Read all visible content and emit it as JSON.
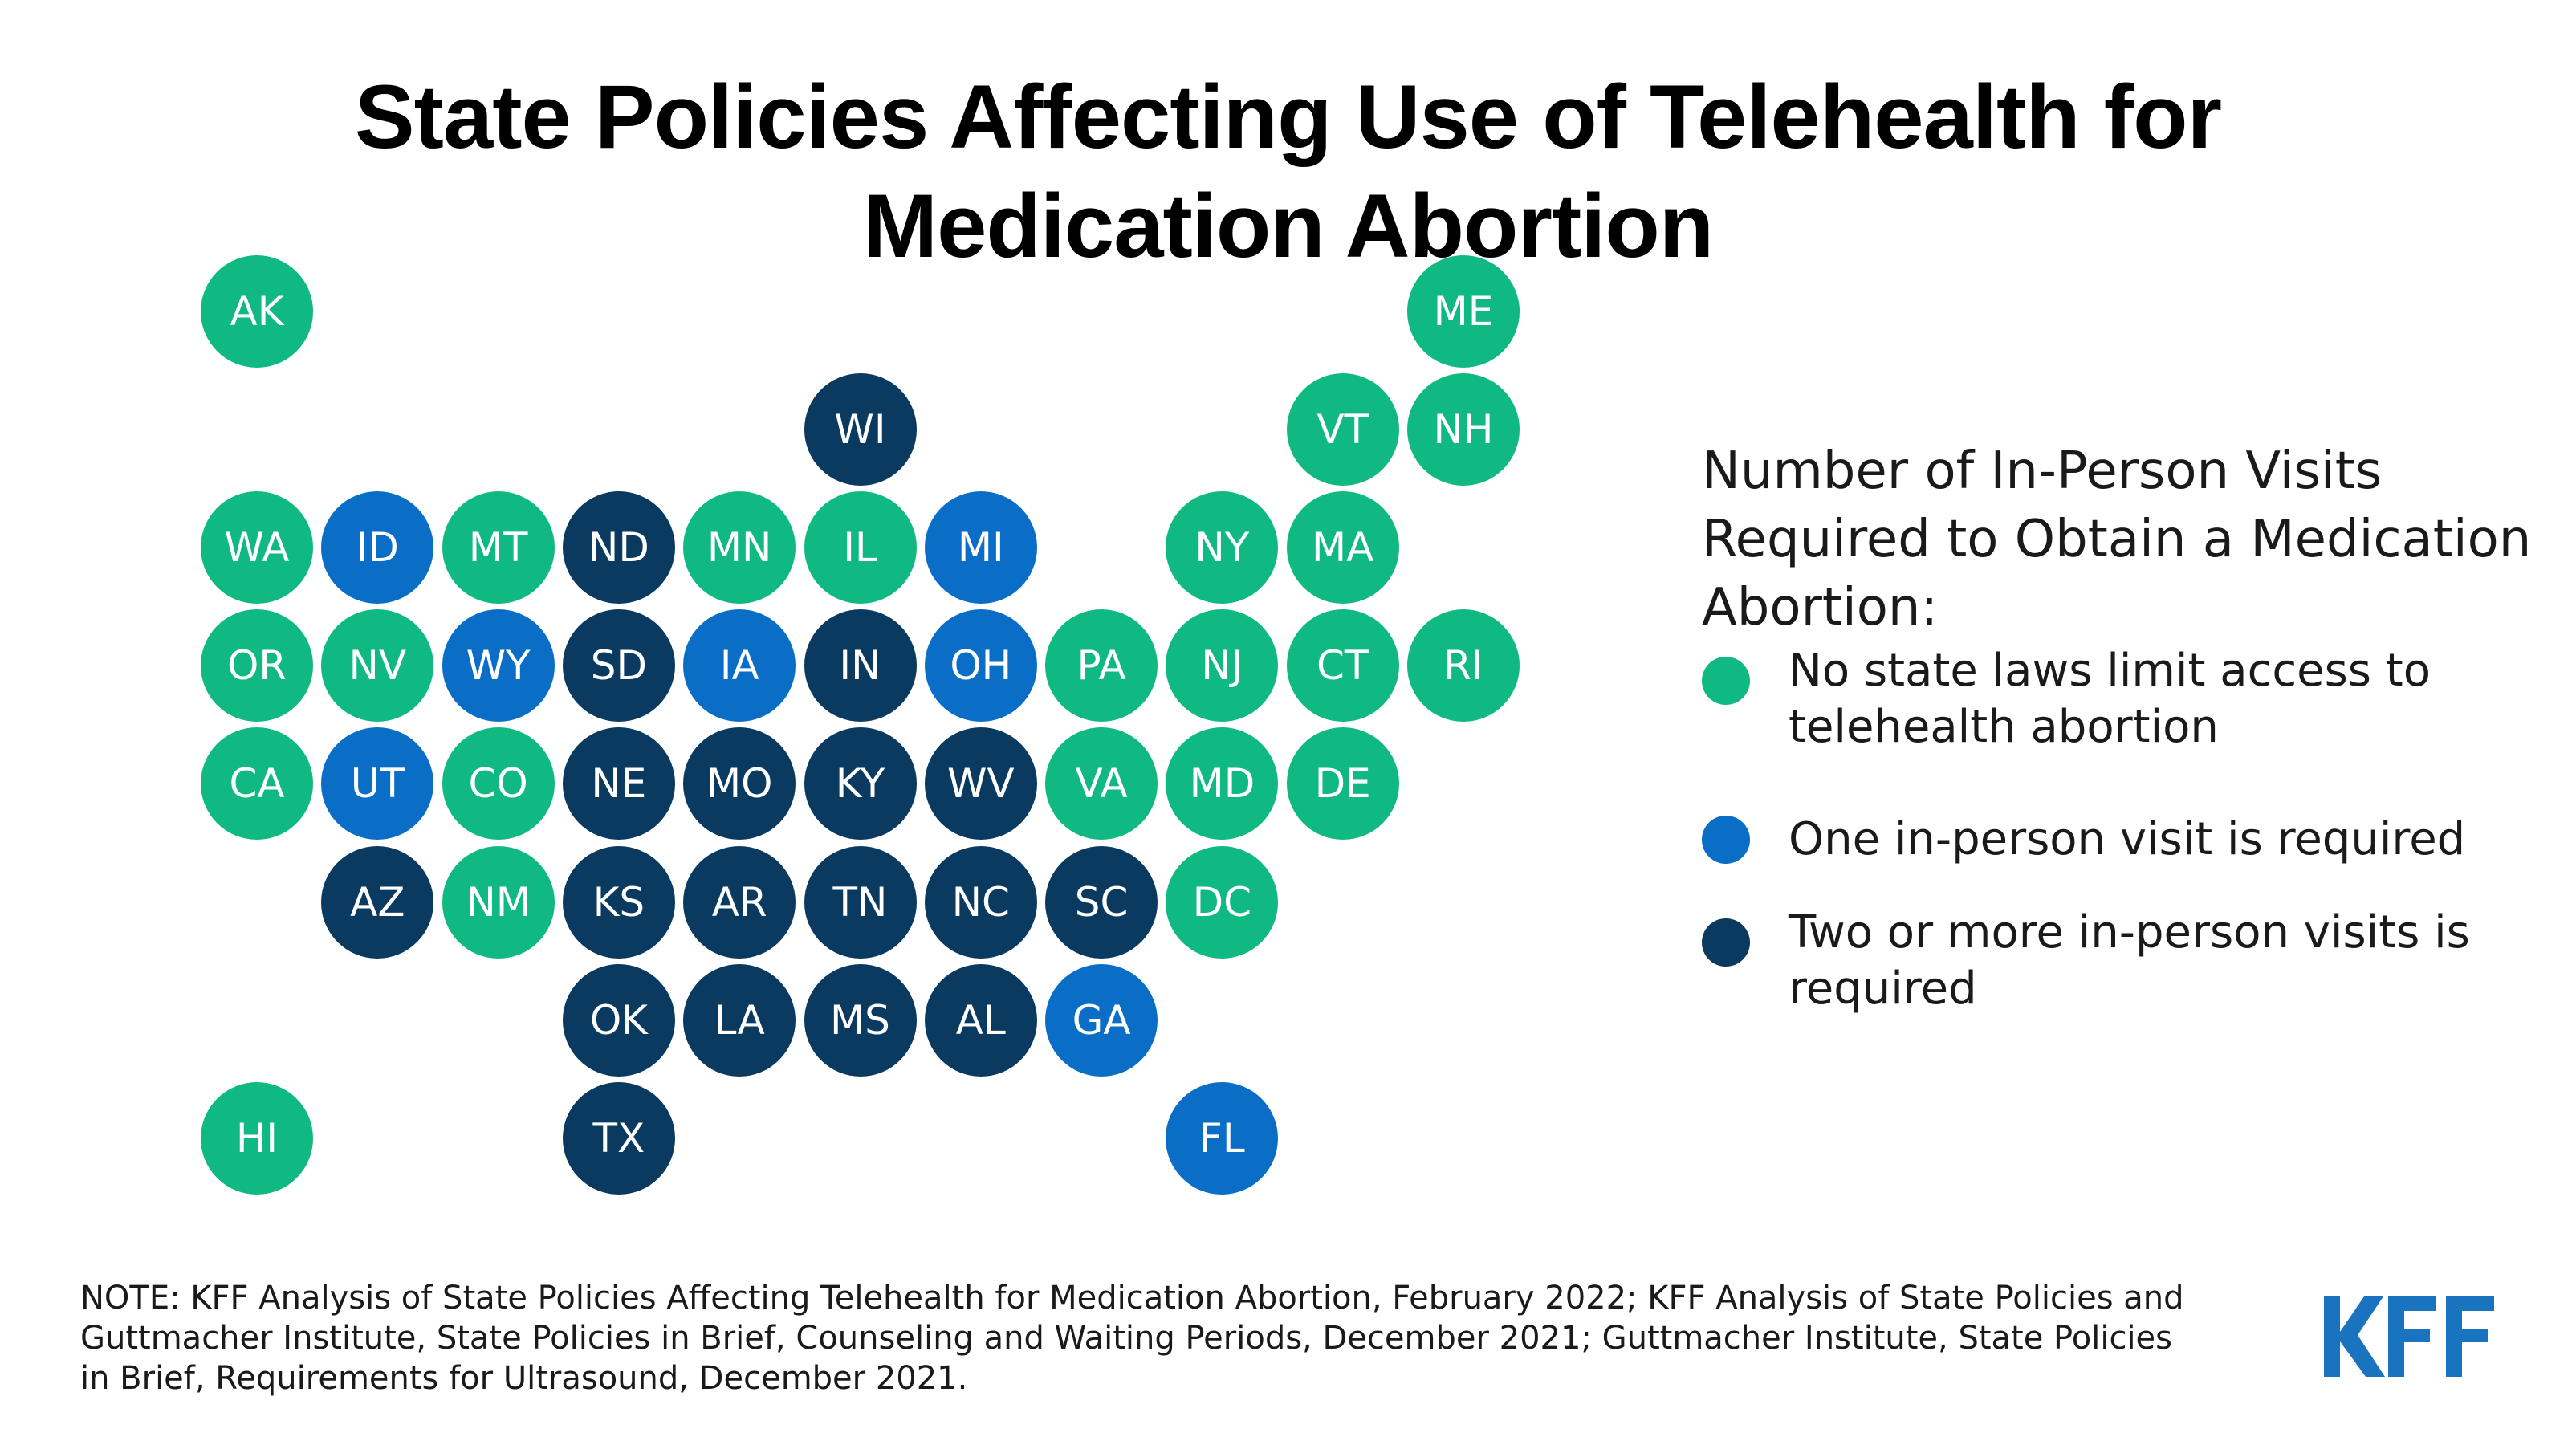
{
  "title_lines": [
    "State Policies Affecting Use of Telehealth for",
    "Medication Abortion"
  ],
  "colors": {
    "none": "#10B981",
    "one": "#0B6EC6",
    "two_plus": "#0A3A5F",
    "logo": "#1A73BE"
  },
  "states": [
    {
      "abbr": "AK",
      "category": "none"
    },
    {
      "abbr": "ME",
      "category": "none"
    },
    {
      "abbr": "WI",
      "category": "two_plus"
    },
    {
      "abbr": "VT",
      "category": "none"
    },
    {
      "abbr": "NH",
      "category": "none"
    },
    {
      "abbr": "WA",
      "category": "none"
    },
    {
      "abbr": "ID",
      "category": "one"
    },
    {
      "abbr": "MT",
      "category": "none"
    },
    {
      "abbr": "ND",
      "category": "two_plus"
    },
    {
      "abbr": "MN",
      "category": "none"
    },
    {
      "abbr": "IL",
      "category": "none"
    },
    {
      "abbr": "MI",
      "category": "one"
    },
    {
      "abbr": "NY",
      "category": "none"
    },
    {
      "abbr": "MA",
      "category": "none"
    },
    {
      "abbr": "OR",
      "category": "none"
    },
    {
      "abbr": "NV",
      "category": "none"
    },
    {
      "abbr": "WY",
      "category": "one"
    },
    {
      "abbr": "SD",
      "category": "two_plus"
    },
    {
      "abbr": "IA",
      "category": "one"
    },
    {
      "abbr": "IN",
      "category": "two_plus"
    },
    {
      "abbr": "OH",
      "category": "one"
    },
    {
      "abbr": "PA",
      "category": "none"
    },
    {
      "abbr": "NJ",
      "category": "none"
    },
    {
      "abbr": "CT",
      "category": "none"
    },
    {
      "abbr": "RI",
      "category": "none"
    },
    {
      "abbr": "CA",
      "category": "none"
    },
    {
      "abbr": "UT",
      "category": "one"
    },
    {
      "abbr": "CO",
      "category": "none"
    },
    {
      "abbr": "NE",
      "category": "two_plus"
    },
    {
      "abbr": "MO",
      "category": "two_plus"
    },
    {
      "abbr": "KY",
      "category": "two_plus"
    },
    {
      "abbr": "WV",
      "category": "two_plus"
    },
    {
      "abbr": "VA",
      "category": "none"
    },
    {
      "abbr": "MD",
      "category": "none"
    },
    {
      "abbr": "DE",
      "category": "none"
    },
    {
      "abbr": "AZ",
      "category": "two_plus"
    },
    {
      "abbr": "NM",
      "category": "none"
    },
    {
      "abbr": "KS",
      "category": "two_plus"
    },
    {
      "abbr": "AR",
      "category": "two_plus"
    },
    {
      "abbr": "TN",
      "category": "two_plus"
    },
    {
      "abbr": "NC",
      "category": "two_plus"
    },
    {
      "abbr": "SC",
      "category": "two_plus"
    },
    {
      "abbr": "DC",
      "category": "none"
    },
    {
      "abbr": "OK",
      "category": "two_plus"
    },
    {
      "abbr": "LA",
      "category": "two_plus"
    },
    {
      "abbr": "MS",
      "category": "two_plus"
    },
    {
      "abbr": "AL",
      "category": "two_plus"
    },
    {
      "abbr": "GA",
      "category": "one"
    },
    {
      "abbr": "HI",
      "category": "none"
    },
    {
      "abbr": "TX",
      "category": "two_plus"
    },
    {
      "abbr": "FL",
      "category": "one"
    }
  ],
  "legend": {
    "title": "Number of In-Person Visits Required to Obtain a Medication Abortion:",
    "items": [
      {
        "category": "none",
        "label": "No state laws limit access to telehealth abortion"
      },
      {
        "category": "one",
        "label": "One in-person visit is required"
      },
      {
        "category": "two_plus",
        "label": "Two or more in-person visits is required"
      }
    ]
  },
  "note": "NOTE: KFF Analysis of State Policies Affecting Telehealth for Medication Abortion, February 2022; KFF Analysis of State Policies and Guttmacher Institute, State Policies in Brief, Counseling and Waiting Periods, December 2021; Guttmacher Institute, State Policies in Brief, Requirements for Ultrasound, December 2021.",
  "logo": "KFF"
}
